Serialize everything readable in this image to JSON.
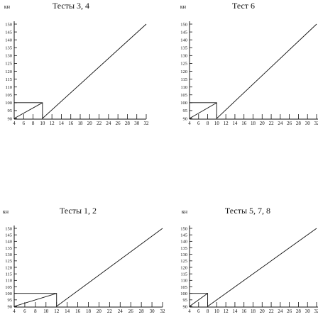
{
  "chart_data": [
    {
      "type": "line",
      "title": "Тесты 3, 4",
      "ylabel": "кн",
      "xlabel": "",
      "xlim": [
        4,
        32
      ],
      "ylim": [
        90,
        150
      ],
      "x_ticks": [
        "4",
        "6",
        "8",
        "10",
        "12",
        "14",
        "16",
        "18",
        "20",
        "22",
        "24",
        "26",
        "28",
        "30",
        "32"
      ],
      "y_ticks": [
        "150",
        "145",
        "140",
        "135",
        "130",
        "125",
        "120",
        "115",
        "110",
        "105",
        "100",
        "95",
        "90"
      ],
      "series": [
        {
          "x": [
            4,
            10,
            10,
            32
          ],
          "y": [
            100,
            100,
            90,
            150
          ]
        },
        {
          "x": [
            10,
            4,
            4
          ],
          "y": [
            100,
            90,
            100
          ]
        }
      ]
    },
    {
      "type": "line",
      "title": "Тест 6",
      "ylabel": "кн",
      "xlabel": "",
      "xlim": [
        4,
        32
      ],
      "ylim": [
        90,
        150
      ],
      "x_ticks": [
        "4",
        "6",
        "8",
        "10",
        "12",
        "14",
        "16",
        "18",
        "20",
        "22",
        "24",
        "26",
        "28",
        "30",
        "32"
      ],
      "y_ticks": [
        "150",
        "145",
        "140",
        "135",
        "130",
        "125",
        "120",
        "115",
        "110",
        "105",
        "100",
        "95",
        "90"
      ],
      "series": [
        {
          "x": [
            4,
            10,
            10,
            32
          ],
          "y": [
            100,
            100,
            90,
            150
          ]
        },
        {
          "x": [
            10,
            4,
            4
          ],
          "y": [
            100,
            90,
            100
          ]
        }
      ]
    },
    {
      "type": "line",
      "title": "Тесты 1, 2",
      "ylabel": "кн",
      "xlabel": "",
      "xlim": [
        4,
        32
      ],
      "ylim": [
        90,
        150
      ],
      "x_ticks": [
        "4",
        "6",
        "8",
        "10",
        "12",
        "14",
        "16",
        "18",
        "20",
        "22",
        "24",
        "26",
        "28",
        "30",
        "32"
      ],
      "y_ticks": [
        "150",
        "145",
        "140",
        "135",
        "130",
        "125",
        "120",
        "115",
        "110",
        "105",
        "100",
        "95",
        "90"
      ],
      "series": [
        {
          "x": [
            4,
            12,
            12,
            32
          ],
          "y": [
            100,
            100,
            90,
            150
          ]
        },
        {
          "x": [
            12,
            4,
            4
          ],
          "y": [
            100,
            90,
            100
          ]
        }
      ]
    },
    {
      "type": "line",
      "title": "Тесты 5, 7, 8",
      "ylabel": "кн",
      "xlabel": "",
      "xlim": [
        4,
        32
      ],
      "ylim": [
        90,
        150
      ],
      "x_ticks": [
        "4",
        "6",
        "8",
        "10",
        "12",
        "14",
        "16",
        "18",
        "20",
        "22",
        "24",
        "26",
        "28",
        "30",
        "32"
      ],
      "y_ticks": [
        "150",
        "145",
        "140",
        "135",
        "130",
        "125",
        "120",
        "115",
        "110",
        "105",
        "100",
        "95",
        "90"
      ],
      "series": [
        {
          "x": [
            4,
            8,
            8,
            32
          ],
          "y": [
            100,
            100,
            90,
            150
          ]
        },
        {
          "x": [
            8,
            4,
            4
          ],
          "y": [
            100,
            90,
            100
          ]
        }
      ]
    }
  ]
}
